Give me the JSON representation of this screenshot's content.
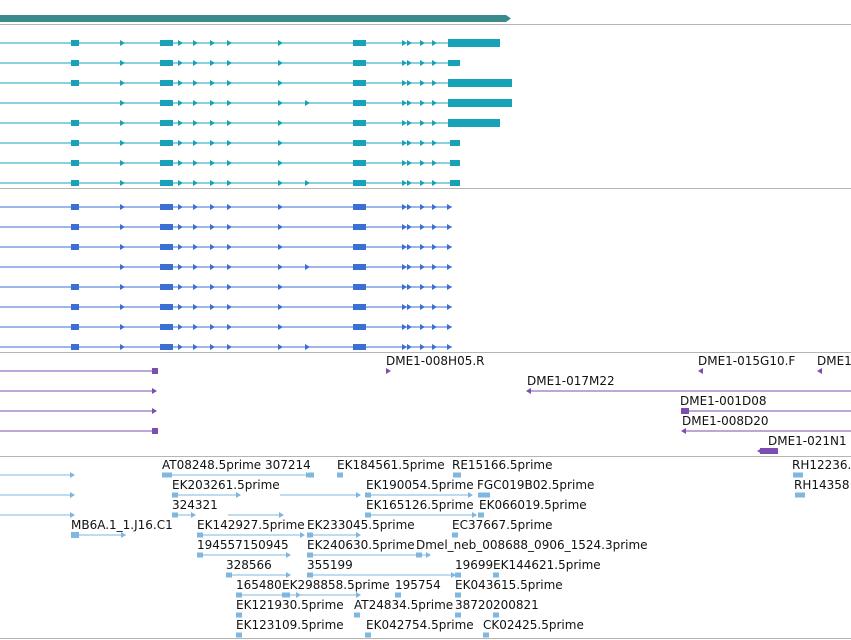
{
  "colors": {
    "background": "#ffffff",
    "gene_model": "#3a8b8c",
    "track1_transcript": "#17a2b8",
    "track2_transcript": "#3b6fd4",
    "track3_feature": "#7b4fb0",
    "track4_feature": "#7fb7e0",
    "divider": "#b5b5b5"
  },
  "tracks": [
    {
      "name": "gene-span-track",
      "rows": 1
    },
    {
      "name": "transcript-track-teal",
      "rows": 8
    },
    {
      "name": "transcript-track-blue",
      "rows": 8
    },
    {
      "name": "clone-end-track",
      "labels": [
        "DME1-008H05.R",
        "DME1-015G10.F",
        "DME1",
        "DME1-017M22",
        "DME1-001D08",
        "DME1-008D20",
        "DME1-021N1"
      ]
    },
    {
      "name": "est-track",
      "labels": [
        "AT08248.5prime",
        "307214",
        "EK184561.5prime",
        "RE15166.5prime",
        "RH12236.",
        "EK203261.5prime",
        "EK190054.5prime",
        "FGC019B02.5prime",
        "RH14358",
        "324321",
        "EK165126.5prime",
        "EK066019.5prime",
        "MB6A.1_1.J16.C1",
        "EK142927.5prime",
        "EK233045.5prime",
        "EC37667.5prime",
        "194557150945",
        "EK240630.5prime",
        "Dmel_neb_008688_0906_1524.3prime",
        "328566",
        "355199",
        "19699",
        "EK144621.5prime",
        "165480",
        "EK298858.5prime",
        "195754",
        "EK043615.5prime",
        "EK121930.5prime",
        "AT24834.5prime",
        "38720",
        "200821",
        "EK123109.5prime",
        "EK042754.5prime",
        "CK02425.5prime"
      ]
    }
  ]
}
